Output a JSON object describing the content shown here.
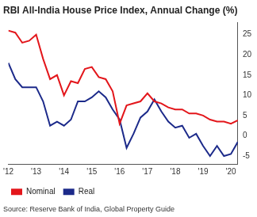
{
  "chart_data": {
    "type": "line",
    "title": "RBI All-India House Price Index, Annual Change (%)",
    "source": "Source: Reserve Bank of India, Global Property Guide",
    "categories": [
      "'12",
      null,
      null,
      null,
      "'13",
      null,
      null,
      null,
      "'14",
      null,
      null,
      null,
      "'15",
      null,
      null,
      null,
      "'16",
      null,
      null,
      null,
      "'17",
      null,
      null,
      null,
      "'18",
      null,
      null,
      null,
      "'19",
      null,
      null,
      null,
      "'20",
      null
    ],
    "series": [
      {
        "name": "Nominal",
        "color": "#e3161b",
        "line_style": "solid",
        "marker": "none",
        "values": [
          26,
          25.5,
          23,
          23.5,
          25,
          19,
          14,
          15,
          10,
          13.5,
          13,
          16.5,
          17,
          14.5,
          14,
          11,
          3,
          7.5,
          8,
          8.5,
          10.5,
          8.5,
          8,
          7,
          6.5,
          6.5,
          5.5,
          5.5,
          5,
          4,
          3.5,
          3.5,
          3,
          3.8
        ]
      },
      {
        "name": "Real",
        "color": "#1c2a8a",
        "line_style": "solid",
        "marker": "none",
        "values": [
          18,
          14,
          12,
          12,
          12,
          8.5,
          2.5,
          3.5,
          2.5,
          4,
          8.5,
          8.5,
          9.5,
          11,
          9.5,
          6.5,
          4,
          -3,
          0.5,
          4.5,
          6,
          9,
          6,
          3.5,
          2,
          2.5,
          -0.5,
          0.5,
          -2.5,
          -5,
          -2.5,
          -5,
          -4.5,
          -1.5
        ]
      }
    ],
    "ylim": [
      -7,
      28
    ],
    "yticks": [
      -5,
      0,
      5,
      10,
      15,
      20,
      25
    ],
    "grid": false,
    "legend": "bottom-left"
  }
}
